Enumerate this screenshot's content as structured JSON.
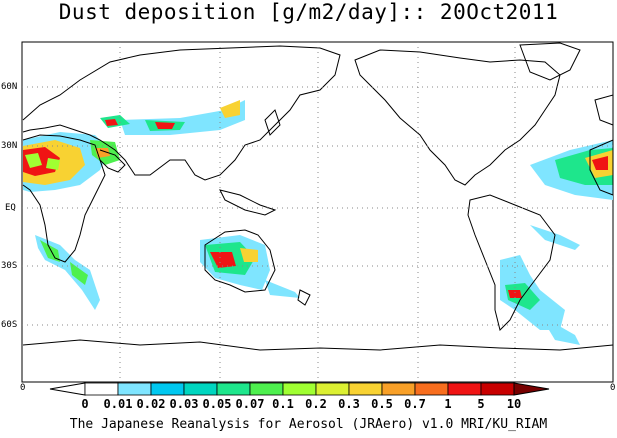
{
  "title": "Dust deposition [g/m2/day]:: 20Oct2011",
  "lat_labels": [
    "60N",
    "30N",
    "EQ",
    "30S",
    "60S"
  ],
  "lon_edge_labels": {
    "left": "0",
    "right": "0"
  },
  "colorbar": {
    "labels": [
      "0",
      "0.01",
      "0.02",
      "0.03",
      "0.05",
      "0.07",
      "0.1",
      "0.2",
      "0.3",
      "0.5",
      "0.7",
      "1",
      "5",
      "10"
    ],
    "colors": [
      "#ffffff",
      "#7fe5ff",
      "#00c8f0",
      "#00d6c0",
      "#1ee68c",
      "#4ef04e",
      "#a0ff32",
      "#dcf032",
      "#f8d232",
      "#f8a028",
      "#f86e1e",
      "#f01414",
      "#c80000",
      "#a00000",
      "#780000"
    ]
  },
  "footer": "The Japanese Reanalysis for Aerosol (JRAero) v1.0 MRI/KU_RIAM"
}
